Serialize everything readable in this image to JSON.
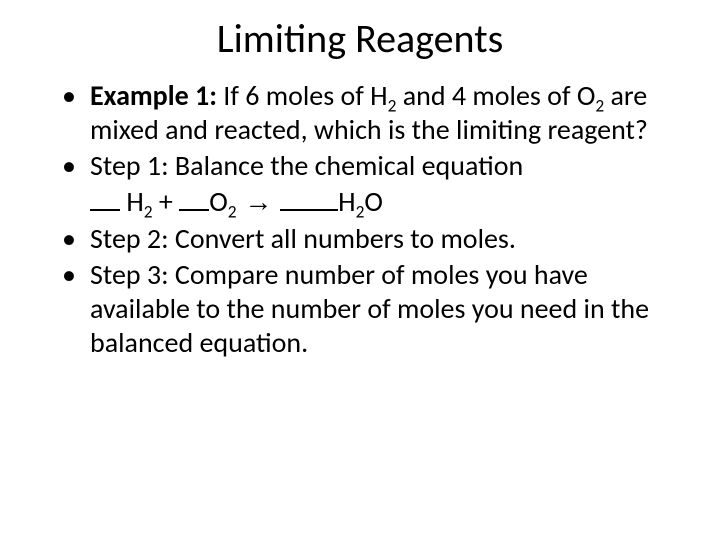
{
  "title": "Limiting Reagents",
  "bullets": {
    "b1_label": "Example 1:",
    "b1_rest_a": "  If 6 moles of H",
    "b1_sub_a": "2",
    "b1_rest_b": " and 4 moles of O",
    "b1_sub_b": "2",
    "b1_rest_c": " are mixed and reacted, which is the limiting reagent?",
    "b2": "Step 1: Balance the chemical equation",
    "eq_h": " H",
    "eq_h_sub": "2",
    "eq_plus": " + ",
    "eq_o": "O",
    "eq_o_sub": "2",
    "eq_arrow": " → ",
    "eq_h2o_a": "H",
    "eq_h2o_sub": "2",
    "eq_h2o_b": "O",
    "b3": "Step 2: Convert all numbers to moles.",
    "b4": "Step 3: Compare number of moles you have available to the number of moles you need in the balanced equation."
  },
  "style": {
    "background_color": "#ffffff",
    "text_color": "#000000",
    "title_fontsize": 40,
    "body_fontsize": 28,
    "font_family": "Calibri"
  }
}
